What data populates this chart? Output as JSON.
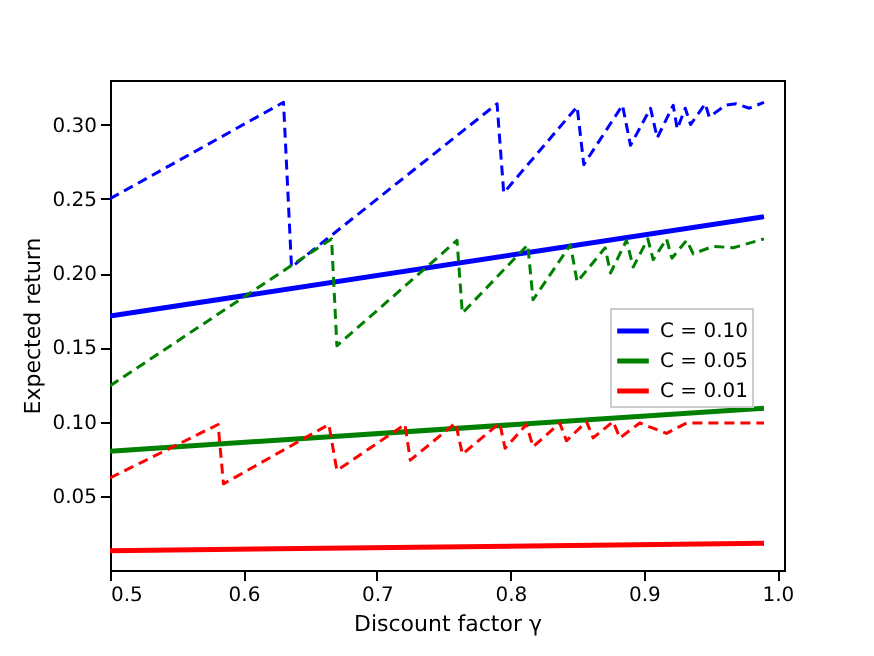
{
  "chart_data": {
    "type": "line",
    "xlabel": "Discount factor γ",
    "ylabel": "Expected return",
    "xlim": [
      0.5,
      1.005
    ],
    "ylim": [
      0,
      0.33
    ],
    "xticks": [
      0.5,
      0.6,
      0.7,
      0.8,
      0.9,
      {
        "value": 1.0,
        "label": "1.0"
      }
    ],
    "yticks": [
      0.05,
      {
        "value": 0.1,
        "label": "0.10"
      },
      0.15,
      {
        "value": 0.2,
        "label": "0.20"
      },
      0.25,
      {
        "value": 0.3,
        "label": "0.30"
      }
    ],
    "grid": false,
    "legend": "right",
    "marker": "none",
    "series": [
      {
        "name": "C = 0.10",
        "color": "#0000ff",
        "line_style": "solid",
        "x": [
          0.5,
          0.99
        ],
        "values": [
          0.171,
          0.238
        ]
      },
      {
        "name": "C = 0.05",
        "color": "#008000",
        "line_style": "solid",
        "x": [
          0.5,
          0.99
        ],
        "values": [
          0.08,
          0.109
        ]
      },
      {
        "name": "C = 0.01",
        "color": "#ff0000",
        "line_style": "solid",
        "x": [
          0.5,
          0.99
        ],
        "values": [
          0.013,
          0.018
        ]
      },
      {
        "color": "#0000ff",
        "line_style": "dashed",
        "x": [
          0.5,
          0.63,
          0.636,
          0.79,
          0.795,
          0.85,
          0.855,
          0.884,
          0.89,
          0.905,
          0.91,
          0.922,
          0.925,
          0.931,
          0.935,
          0.946,
          0.949,
          0.961,
          0.969,
          0.979,
          0.99
        ],
        "values": [
          0.25,
          0.315,
          0.204,
          0.314,
          0.254,
          0.312,
          0.273,
          0.313,
          0.286,
          0.311,
          0.291,
          0.313,
          0.297,
          0.311,
          0.3,
          0.314,
          0.305,
          0.313,
          0.314,
          0.311,
          0.315
        ]
      },
      {
        "color": "#008000",
        "line_style": "dashed",
        "x": [
          0.5,
          0.666,
          0.67,
          0.76,
          0.764,
          0.813,
          0.817,
          0.845,
          0.85,
          0.871,
          0.875,
          0.887,
          0.892,
          0.903,
          0.907,
          0.917,
          0.921,
          0.932,
          0.937,
          0.952,
          0.967,
          0.99
        ],
        "values": [
          0.124,
          0.223,
          0.151,
          0.222,
          0.173,
          0.219,
          0.182,
          0.219,
          0.194,
          0.217,
          0.2,
          0.222,
          0.204,
          0.223,
          0.209,
          0.223,
          0.21,
          0.222,
          0.213,
          0.218,
          0.217,
          0.223
        ]
      },
      {
        "color": "#ff0000",
        "line_style": "dashed",
        "x": [
          0.5,
          0.581,
          0.585,
          0.664,
          0.67,
          0.721,
          0.725,
          0.759,
          0.764,
          0.792,
          0.796,
          0.812,
          0.817,
          0.837,
          0.842,
          0.857,
          0.862,
          0.877,
          0.882,
          0.897,
          0.917,
          0.932,
          0.99
        ],
        "values": [
          0.062,
          0.098,
          0.058,
          0.098,
          0.067,
          0.098,
          0.074,
          0.099,
          0.078,
          0.099,
          0.082,
          0.098,
          0.083,
          0.099,
          0.087,
          0.1,
          0.089,
          0.1,
          0.089,
          0.099,
          0.092,
          0.099,
          0.099
        ]
      }
    ]
  }
}
